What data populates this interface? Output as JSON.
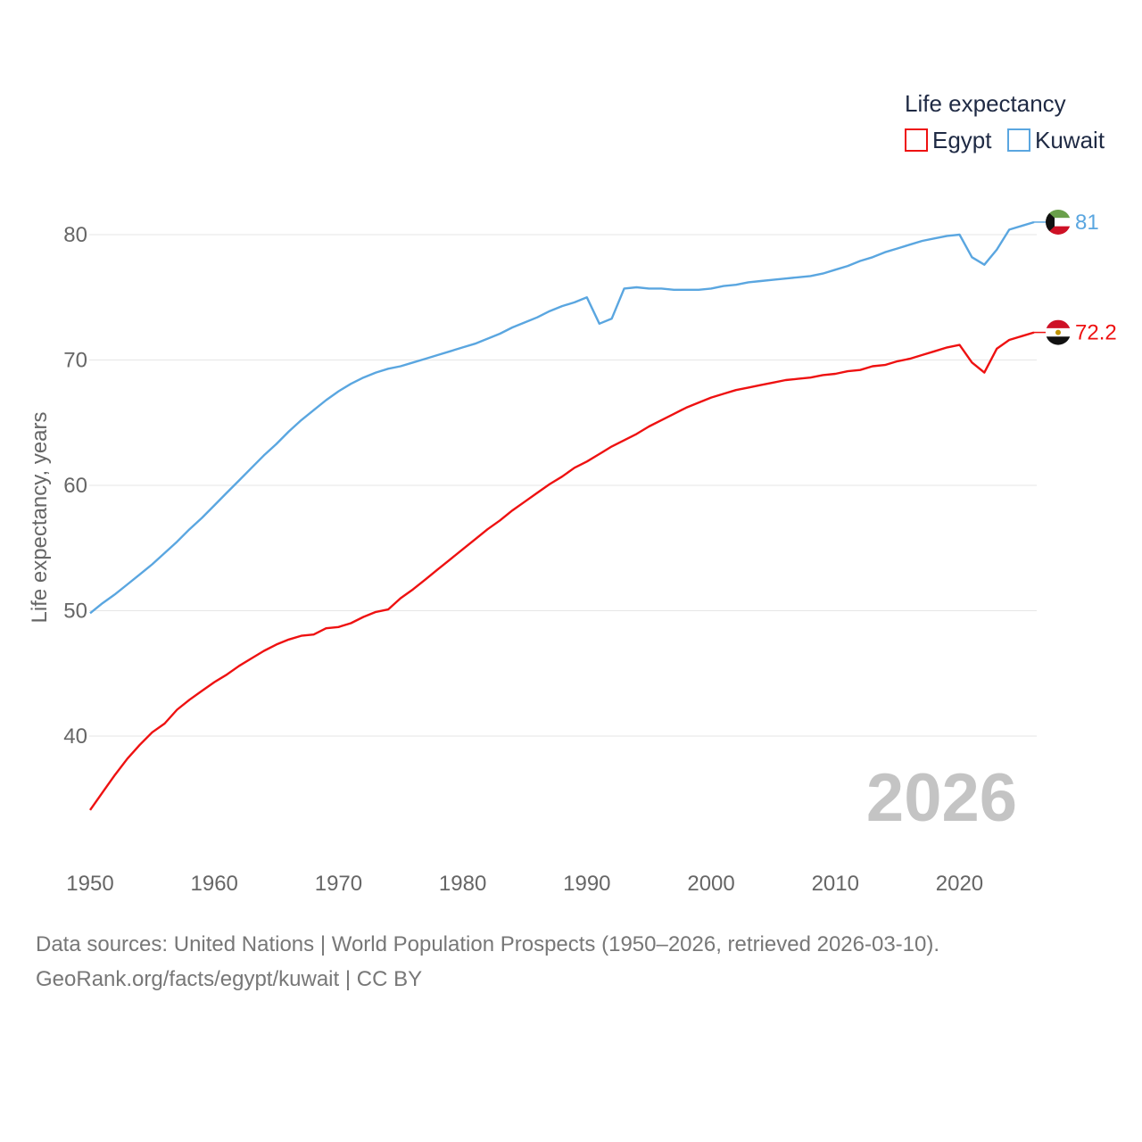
{
  "chart_data": {
    "type": "line",
    "ylabel": "Life expectancy, years",
    "xlim": [
      1950,
      2026
    ],
    "ylim": [
      34,
      84
    ],
    "x_ticks": [
      1950,
      1960,
      1970,
      1980,
      1990,
      2000,
      2010,
      2020
    ],
    "y_ticks": [
      40,
      50,
      60,
      70,
      80
    ],
    "grid": true,
    "legend": {
      "title": "Life expectancy",
      "position": "top-right"
    },
    "current_year": "2026",
    "series": [
      {
        "name": "Egypt",
        "color": "#ee1111",
        "end_label": "72.2",
        "flag": "egypt-flag-icon",
        "points": [
          [
            1950,
            34.1
          ],
          [
            1951,
            35.5
          ],
          [
            1952,
            36.9
          ],
          [
            1953,
            38.2
          ],
          [
            1954,
            39.3
          ],
          [
            1955,
            40.3
          ],
          [
            1956,
            41.0
          ],
          [
            1957,
            42.1
          ],
          [
            1958,
            42.9
          ],
          [
            1959,
            43.6
          ],
          [
            1960,
            44.3
          ],
          [
            1961,
            44.9
          ],
          [
            1962,
            45.6
          ],
          [
            1963,
            46.2
          ],
          [
            1964,
            46.8
          ],
          [
            1965,
            47.3
          ],
          [
            1966,
            47.7
          ],
          [
            1967,
            48.0
          ],
          [
            1968,
            48.1
          ],
          [
            1969,
            48.6
          ],
          [
            1970,
            48.7
          ],
          [
            1971,
            49.0
          ],
          [
            1972,
            49.5
          ],
          [
            1973,
            49.9
          ],
          [
            1974,
            50.1
          ],
          [
            1975,
            51.0
          ],
          [
            1976,
            51.7
          ],
          [
            1977,
            52.5
          ],
          [
            1978,
            53.3
          ],
          [
            1979,
            54.1
          ],
          [
            1980,
            54.9
          ],
          [
            1981,
            55.7
          ],
          [
            1982,
            56.5
          ],
          [
            1983,
            57.2
          ],
          [
            1984,
            58.0
          ],
          [
            1985,
            58.7
          ],
          [
            1986,
            59.4
          ],
          [
            1987,
            60.1
          ],
          [
            1988,
            60.7
          ],
          [
            1989,
            61.4
          ],
          [
            1990,
            61.9
          ],
          [
            1991,
            62.5
          ],
          [
            1992,
            63.1
          ],
          [
            1993,
            63.6
          ],
          [
            1994,
            64.1
          ],
          [
            1995,
            64.7
          ],
          [
            1996,
            65.2
          ],
          [
            1997,
            65.7
          ],
          [
            1998,
            66.2
          ],
          [
            1999,
            66.6
          ],
          [
            2000,
            67.0
          ],
          [
            2001,
            67.3
          ],
          [
            2002,
            67.6
          ],
          [
            2003,
            67.8
          ],
          [
            2004,
            68.0
          ],
          [
            2005,
            68.2
          ],
          [
            2006,
            68.4
          ],
          [
            2007,
            68.5
          ],
          [
            2008,
            68.6
          ],
          [
            2009,
            68.8
          ],
          [
            2010,
            68.9
          ],
          [
            2011,
            69.1
          ],
          [
            2012,
            69.2
          ],
          [
            2013,
            69.5
          ],
          [
            2014,
            69.6
          ],
          [
            2015,
            69.9
          ],
          [
            2016,
            70.1
          ],
          [
            2017,
            70.4
          ],
          [
            2018,
            70.7
          ],
          [
            2019,
            71.0
          ],
          [
            2020,
            71.2
          ],
          [
            2021,
            69.8
          ],
          [
            2022,
            69.0
          ],
          [
            2023,
            70.9
          ],
          [
            2024,
            71.6
          ],
          [
            2025,
            71.9
          ],
          [
            2026,
            72.2
          ]
        ]
      },
      {
        "name": "Kuwait",
        "color": "#5aa6e0",
        "end_label": "81",
        "flag": "kuwait-flag-icon",
        "points": [
          [
            1950,
            49.8
          ],
          [
            1951,
            50.6
          ],
          [
            1952,
            51.3
          ],
          [
            1953,
            52.1
          ],
          [
            1954,
            52.9
          ],
          [
            1955,
            53.7
          ],
          [
            1956,
            54.6
          ],
          [
            1957,
            55.5
          ],
          [
            1958,
            56.5
          ],
          [
            1959,
            57.4
          ],
          [
            1960,
            58.4
          ],
          [
            1961,
            59.4
          ],
          [
            1962,
            60.4
          ],
          [
            1963,
            61.4
          ],
          [
            1964,
            62.4
          ],
          [
            1965,
            63.3
          ],
          [
            1966,
            64.3
          ],
          [
            1967,
            65.2
          ],
          [
            1968,
            66.0
          ],
          [
            1969,
            66.8
          ],
          [
            1970,
            67.5
          ],
          [
            1971,
            68.1
          ],
          [
            1972,
            68.6
          ],
          [
            1973,
            69.0
          ],
          [
            1974,
            69.3
          ],
          [
            1975,
            69.5
          ],
          [
            1976,
            69.8
          ],
          [
            1977,
            70.1
          ],
          [
            1978,
            70.4
          ],
          [
            1979,
            70.7
          ],
          [
            1980,
            71.0
          ],
          [
            1981,
            71.3
          ],
          [
            1982,
            71.7
          ],
          [
            1983,
            72.1
          ],
          [
            1984,
            72.6
          ],
          [
            1985,
            73.0
          ],
          [
            1986,
            73.4
          ],
          [
            1987,
            73.9
          ],
          [
            1988,
            74.3
          ],
          [
            1989,
            74.6
          ],
          [
            1990,
            75.0
          ],
          [
            1991,
            72.9
          ],
          [
            1992,
            73.3
          ],
          [
            1993,
            75.7
          ],
          [
            1994,
            75.8
          ],
          [
            1995,
            75.7
          ],
          [
            1996,
            75.7
          ],
          [
            1997,
            75.6
          ],
          [
            1998,
            75.6
          ],
          [
            1999,
            75.6
          ],
          [
            2000,
            75.7
          ],
          [
            2001,
            75.9
          ],
          [
            2002,
            76.0
          ],
          [
            2003,
            76.2
          ],
          [
            2004,
            76.3
          ],
          [
            2005,
            76.4
          ],
          [
            2006,
            76.5
          ],
          [
            2007,
            76.6
          ],
          [
            2008,
            76.7
          ],
          [
            2009,
            76.9
          ],
          [
            2010,
            77.2
          ],
          [
            2011,
            77.5
          ],
          [
            2012,
            77.9
          ],
          [
            2013,
            78.2
          ],
          [
            2014,
            78.6
          ],
          [
            2015,
            78.9
          ],
          [
            2016,
            79.2
          ],
          [
            2017,
            79.5
          ],
          [
            2018,
            79.7
          ],
          [
            2019,
            79.9
          ],
          [
            2020,
            80.0
          ],
          [
            2021,
            78.2
          ],
          [
            2022,
            77.6
          ],
          [
            2023,
            78.8
          ],
          [
            2024,
            80.4
          ],
          [
            2025,
            80.7
          ],
          [
            2026,
            81.0
          ]
        ]
      }
    ]
  },
  "footer": {
    "sources": "Data sources: United Nations | World Population Prospects (1950–2026, retrieved 2026-03-10).",
    "link": "GeoRank.org/facts/egypt/kuwait | CC BY"
  }
}
